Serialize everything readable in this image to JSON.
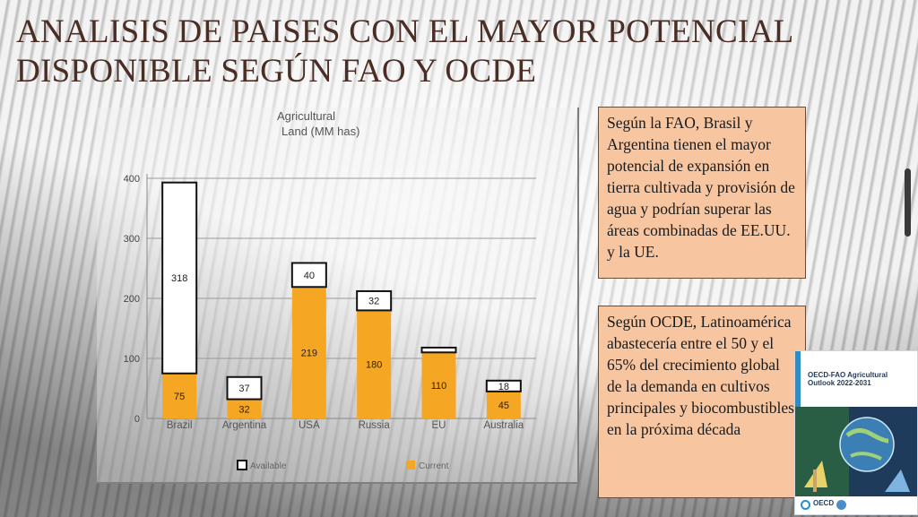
{
  "slide": {
    "title": "ANALISIS DE PAISES CON EL MAYOR POTENCIAL DISPONIBLE SEGÚN FAO Y OCDE",
    "note_fao": "Según la FAO, Brasil y Argentina tienen el mayor potencial de expansión en tierra cultivada y provisión de agua y podrían superar las áreas combinadas de EE.UU. y la UE.",
    "note_ocde": "Según OCDE, Latinoamérica abastecería entre el 50 y el 65% del crecimiento global  de la demanda en cultivos principales y biocombustibles en la próxima década",
    "book": {
      "title": "OECD-FAO Agricultural Outlook 2022-2031",
      "logo_text": "OECD"
    },
    "colors": {
      "current": "#f5a623",
      "available": "#ffffff",
      "title": "#4a2d24",
      "note_bg": "#f7c6a0"
    }
  },
  "chart_data": {
    "type": "bar",
    "stacked": true,
    "title": "Agricultural Land (MM has)",
    "title_lines": [
      "Agricultural",
      "Land (MM has)"
    ],
    "categories": [
      "Brazil",
      "Argentina",
      "USA",
      "Russia",
      "EU",
      "Australia"
    ],
    "series": [
      {
        "name": "Current",
        "values": [
          75,
          32,
          219,
          180,
          110,
          45
        ],
        "labels": [
          "75",
          "32",
          "219",
          "180",
          "110",
          "45"
        ],
        "color": "#f5a623"
      },
      {
        "name": "Available",
        "values": [
          318,
          37,
          40,
          32,
          8,
          18
        ],
        "labels": [
          "318",
          "37",
          "40",
          "32",
          "",
          "18"
        ],
        "color": "#ffffff"
      }
    ],
    "ylim": [
      0,
      400
    ],
    "yticks": [
      "0",
      "100",
      "200",
      "300",
      "400"
    ],
    "grid": true,
    "legend": "bottom"
  }
}
